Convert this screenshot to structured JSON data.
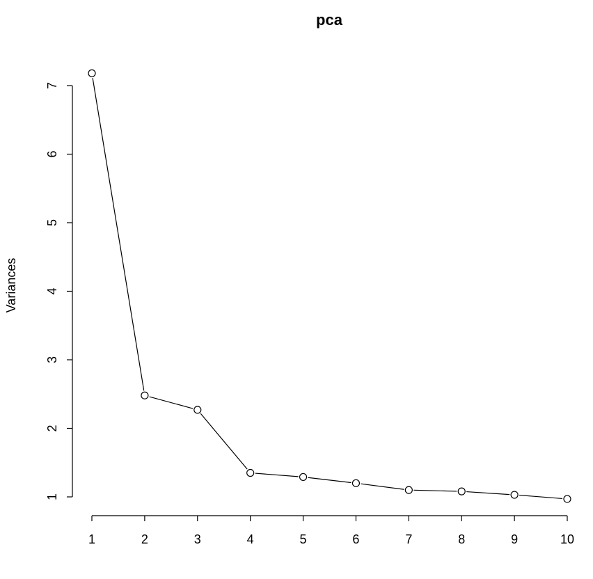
{
  "chart_data": {
    "type": "line",
    "title": "pca",
    "xlabel": "",
    "ylabel": "Variances",
    "x": [
      1,
      2,
      3,
      4,
      5,
      6,
      7,
      8,
      9,
      10
    ],
    "series": [
      {
        "values": [
          7.18,
          2.48,
          2.27,
          1.35,
          1.29,
          1.2,
          1.1,
          1.08,
          1.03,
          0.97
        ]
      }
    ],
    "x_ticks": [
      1,
      2,
      3,
      4,
      5,
      6,
      7,
      8,
      9,
      10
    ],
    "y_ticks": [
      1,
      2,
      3,
      4,
      5,
      6,
      7
    ],
    "xlim": [
      1,
      10
    ],
    "ylim": [
      1,
      7
    ],
    "grid": false,
    "marker": "open-circle",
    "line_color": "#000000",
    "marker_fill": "#ffffff"
  }
}
